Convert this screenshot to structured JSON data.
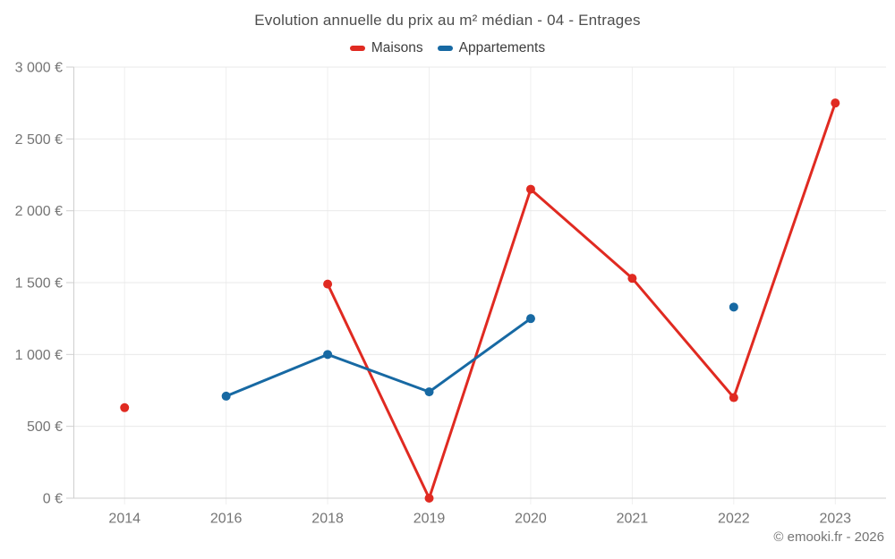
{
  "header": {
    "title": "Evolution annuelle du prix au m² médian - 04 - Entrages"
  },
  "legend": {
    "items": [
      {
        "label": "Maisons",
        "color": "#e02a21"
      },
      {
        "label": "Appartements",
        "color": "#1769a3"
      }
    ]
  },
  "footer": {
    "credit": "© emooki.fr - 2026"
  },
  "chart_data": {
    "type": "line",
    "title": "Evolution annuelle du prix au m² médian - 04 - Entrages",
    "categories": [
      "2014",
      "2016",
      "2018",
      "2019",
      "2020",
      "2021",
      "2022",
      "2023"
    ],
    "series": [
      {
        "name": "Maisons",
        "color": "#e02a21",
        "values": [
          630,
          null,
          1490,
          0,
          2150,
          1530,
          700,
          2750
        ]
      },
      {
        "name": "Appartements",
        "color": "#1769a3",
        "values": [
          null,
          710,
          1000,
          740,
          1250,
          null,
          1330,
          null
        ]
      }
    ],
    "xlabel": "",
    "ylabel": "",
    "ylim": [
      0,
      3000
    ],
    "ytick_step": 500,
    "ytick_labels": [
      "0 €",
      "500 €",
      "1 000 €",
      "1 500 €",
      "2 000 €",
      "2 500 €",
      "3 000 €"
    ],
    "currency_suffix": "€",
    "grid": true,
    "legend_position": "top",
    "line_breaks_on_missing_data": true
  }
}
